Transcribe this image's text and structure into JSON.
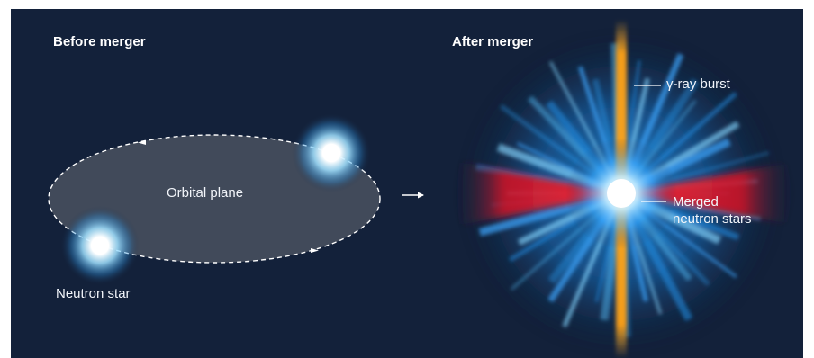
{
  "panels": {
    "before": {
      "heading": "Before merger",
      "orbital_plane_label": "Orbital plane",
      "neutron_star_label": "Neutron star"
    },
    "after": {
      "heading": "After merger",
      "gamma_ray_burst_label": "γ-ray burst",
      "merged_label_line1": "Merged",
      "merged_label_line2": "neutron stars"
    }
  },
  "colors": {
    "background": "#13213a",
    "orbital_plane_fill": "#4a5160",
    "star_glow": "#7fd3ff",
    "blue_ejecta": "#2aa7ff",
    "red_ejecta": "#ff1f2e",
    "gamma_ray_jet": "#ffa21a"
  },
  "icons": {
    "transition_arrow": "right-arrow-icon"
  }
}
